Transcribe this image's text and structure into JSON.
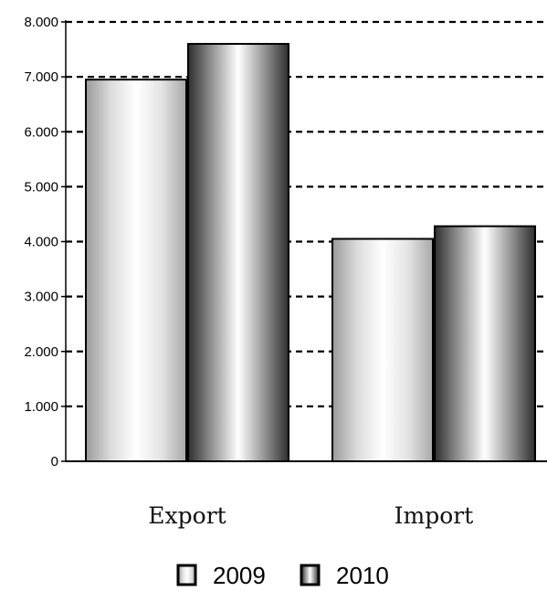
{
  "chart_data": {
    "type": "bar",
    "categories": [
      "Export",
      "Import"
    ],
    "series": [
      {
        "name": "2009",
        "values": [
          6950,
          4050
        ]
      },
      {
        "name": "2010",
        "values": [
          7600,
          4280
        ]
      }
    ],
    "ylim": [
      0,
      8000
    ],
    "yticks": [
      0,
      1000,
      2000,
      3000,
      4000,
      5000,
      6000,
      7000,
      8000
    ],
    "ytick_labels": [
      "0",
      "1.000",
      "2.000",
      "3.000",
      "4.000",
      "5.000",
      "6.000",
      "7.000",
      "8.000"
    ],
    "grid": true,
    "grid_style": "dashed",
    "legend_position": "bottom",
    "title": "",
    "xlabel": "",
    "ylabel": ""
  }
}
